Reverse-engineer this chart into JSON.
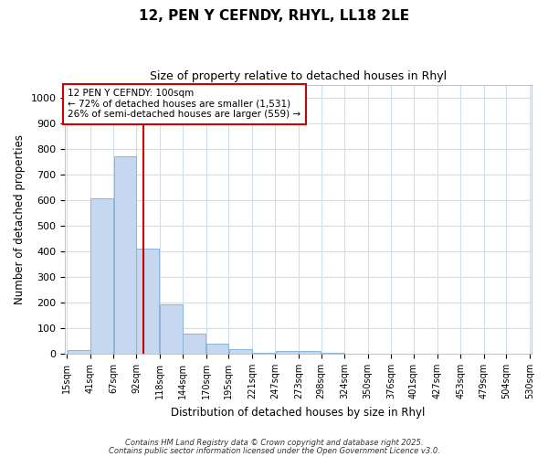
{
  "title1": "12, PEN Y CEFNDY, RHYL, LL18 2LE",
  "title2": "Size of property relative to detached houses in Rhyl",
  "xlabel": "Distribution of detached houses by size in Rhyl",
  "ylabel": "Number of detached properties",
  "bin_edges": [
    15,
    41,
    67,
    92,
    118,
    144,
    170,
    195,
    221,
    247,
    273,
    298,
    324,
    350,
    376,
    401,
    427,
    453,
    479,
    504,
    530
  ],
  "bar_heights": [
    15,
    607,
    770,
    410,
    192,
    78,
    38,
    18,
    5,
    12,
    12,
    3,
    0,
    0,
    0,
    0,
    0,
    0,
    0,
    0
  ],
  "bar_color": "#c5d8f0",
  "bar_edge_color": "#8ab4d8",
  "vline_x": 100,
  "vline_color": "#cc0000",
  "ylim": [
    0,
    1050
  ],
  "yticks": [
    0,
    100,
    200,
    300,
    400,
    500,
    600,
    700,
    800,
    900,
    1000
  ],
  "annotation_title": "12 PEN Y CEFNDY: 100sqm",
  "annotation_line1": "← 72% of detached houses are smaller (1,531)",
  "annotation_line2": "26% of semi-detached houses are larger (559) →",
  "annotation_box_color": "#cc0000",
  "annotation_bg": "#ffffff",
  "plot_bg": "#ffffff",
  "fig_bg": "#ffffff",
  "grid_color": "#d0ddf0",
  "footer1": "Contains HM Land Registry data © Crown copyright and database right 2025.",
  "footer2": "Contains public sector information licensed under the Open Government Licence v3.0."
}
